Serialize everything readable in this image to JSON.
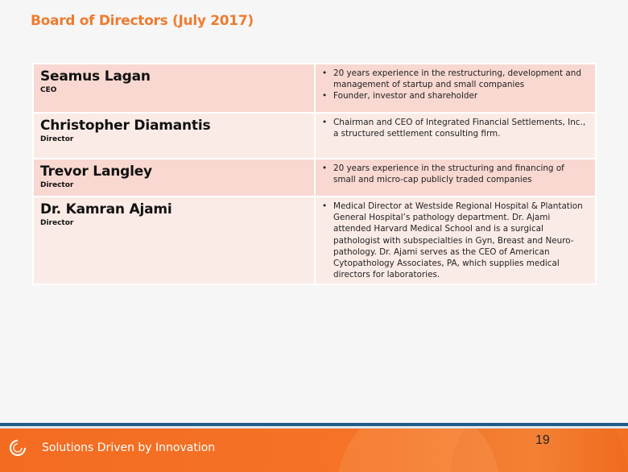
{
  "title": "Board of Directors (July 2017)",
  "directors": [
    {
      "name": "Seamus Lagan",
      "role": "CEO",
      "bullets": [
        "20 years experience in the restructuring, development and management of startup and small companies",
        "Founder, investor and shareholder"
      ]
    },
    {
      "name": "Christopher Diamantis",
      "role": "Director",
      "bullets": [
        "Chairman and CEO of Integrated Financial Settlements, Inc., a structured settlement consulting firm."
      ]
    },
    {
      "name": "Trevor Langley",
      "role": "Director",
      "bullets": [
        "20 years experience in the structuring and financing of small and micro-cap publicly traded companies"
      ]
    },
    {
      "name": "Dr. Kamran Ajami",
      "role": "Director",
      "bullets": [
        "Medical Director at Westside Regional Hospital & Plantation General Hospital’s pathology department. Dr. Ajami attended Harvard Medical School and is a surgical pathologist with subspecialties in Gyn, Breast and Neuro-pathology. Dr. Ajami serves as the CEO of American Cytopathology Associates, PA, which supplies medical directors for laboratories."
      ]
    }
  ],
  "footer": {
    "tagline": "Solutions Driven by Innovation",
    "page_number": "19",
    "logo_icon": "swirl-logo-icon"
  },
  "colors": {
    "title": "#ee7b30",
    "row_dark": "#f8d8d0",
    "row_light": "#fbebe7",
    "footer": "#f36b21",
    "rule": "#1f5c8a"
  }
}
